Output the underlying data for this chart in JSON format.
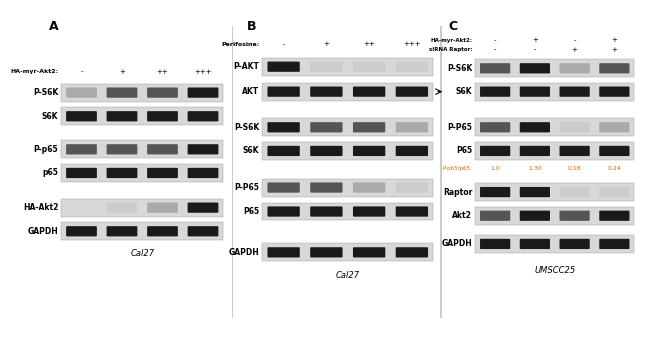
{
  "panel_A_label": "A",
  "panel_B_label": "B",
  "panel_C_label": "C",
  "panel_A_treatment_label": "HA-myr-Akt2:",
  "panel_A_treatments": [
    "-",
    "+",
    "++",
    "+++"
  ],
  "panel_A_blots": [
    "P-S6K",
    "S6K",
    "P-p65",
    "p65",
    "HA-Akt2",
    "GAPDH"
  ],
  "panel_A_cell_line": "Cal27",
  "panel_B_treatment_label": "Perifosine:",
  "panel_B_treatments": [
    "-",
    "+",
    "++",
    "+++"
  ],
  "panel_B_blots": [
    "P-AKT",
    "AKT",
    "P-S6K",
    "S6K",
    "P-P65",
    "P65",
    "GAPDH"
  ],
  "panel_B_cell_line": "Cal27",
  "panel_C_treatment_label1": "HA-myr-Akt2:",
  "panel_C_treatment_label2": "siRNA Raptor:",
  "panel_C_treatments1": [
    "-",
    "+",
    "-",
    "+"
  ],
  "panel_C_treatments2": [
    "-",
    "-",
    "+",
    "+"
  ],
  "panel_C_blots": [
    "P-S6K",
    "S6K",
    "P-P65",
    "P65",
    "Raptor",
    "Akt2",
    "GAPDH"
  ],
  "panel_C_ratios_label": "P-p65/p65:",
  "panel_C_ratios": [
    "1.0",
    "1.30",
    "0.18",
    "0.24"
  ],
  "panel_C_cell_line": "UMSCC25",
  "bg_color": "#ffffff"
}
